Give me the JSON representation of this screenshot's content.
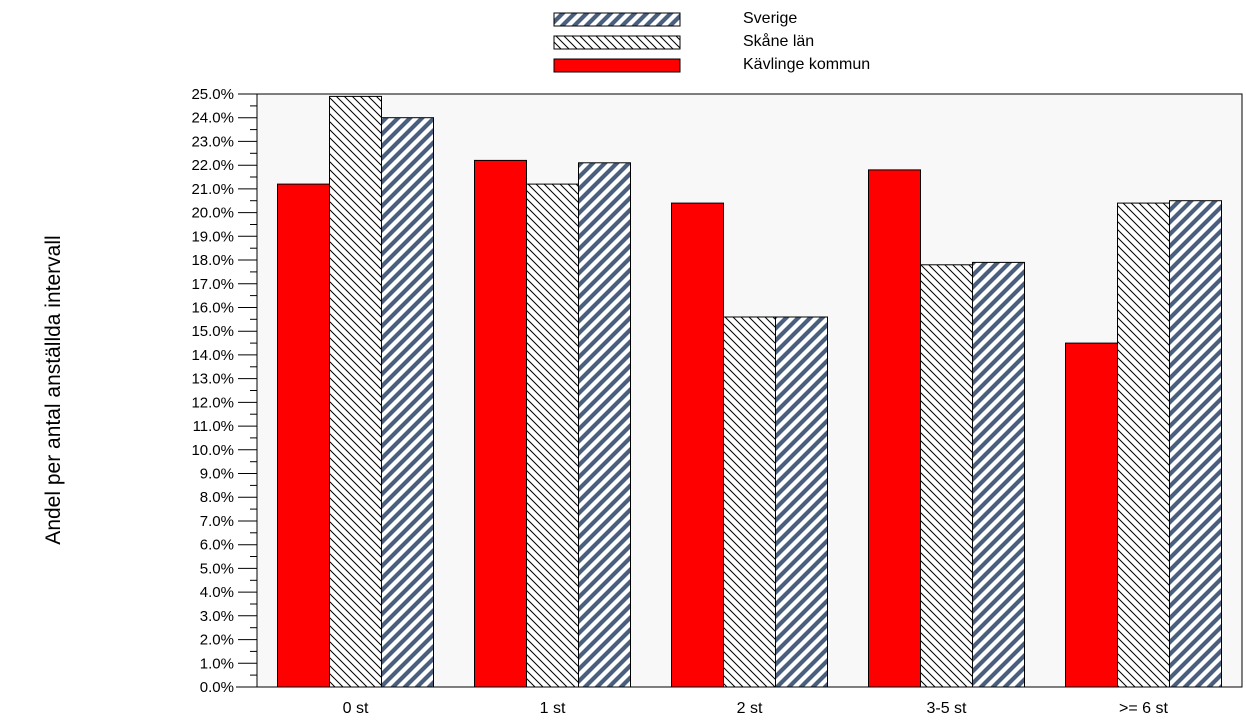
{
  "chart_data": {
    "type": "bar",
    "title": "",
    "xlabel": "",
    "ylabel": "Andel per antal anställda intervall",
    "categories": [
      "0 st",
      "1 st",
      "2 st",
      "3-5 st",
      ">= 6 st"
    ],
    "series": [
      {
        "name": "Kävlinge kommun",
        "values": [
          21.2,
          22.2,
          20.4,
          21.8,
          14.5
        ],
        "color": "#ff0000",
        "pattern": "solid"
      },
      {
        "name": "Skåne län",
        "values": [
          24.9,
          21.2,
          15.6,
          17.8,
          20.4
        ],
        "color": "#ffffff",
        "pattern": "thin-backslash-hatch"
      },
      {
        "name": "Sverige",
        "values": [
          24.0,
          22.1,
          15.6,
          17.9,
          20.5
        ],
        "color": "#4a5f7e",
        "pattern": "bold-slash-hatch"
      }
    ],
    "legend_order": [
      "Sverige",
      "Skåne län",
      "Kävlinge kommun"
    ],
    "legend_position": "top-center",
    "ylim": [
      0,
      25
    ],
    "y_tick_step": 1,
    "y_tick_format": "percent-one-decimal",
    "plot_background": "#f8f8f8",
    "grid": false
  }
}
